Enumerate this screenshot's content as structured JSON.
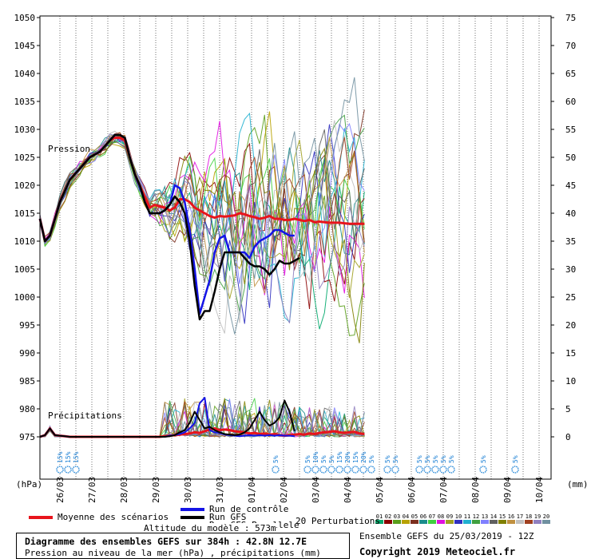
{
  "chart_data": {
    "type": "line",
    "left_axis_label": "(hPa)",
    "right_axis_label": "(mm)",
    "pressure_ticks": [
      1050,
      1045,
      1040,
      1035,
      1030,
      1025,
      1020,
      1015,
      1010,
      1005,
      1000,
      995,
      990,
      985,
      980,
      975
    ],
    "precip_ticks": [
      75,
      70,
      65,
      60,
      55,
      50,
      45,
      40,
      35,
      30,
      25,
      20,
      15,
      10,
      5,
      0
    ],
    "x_labels": [
      "26/03",
      "27/03",
      "28/03",
      "29/03",
      "30/03",
      "31/03",
      "01/04",
      "02/04",
      "03/04",
      "04/04",
      "05/04",
      "06/04",
      "07/04",
      "08/04",
      "09/04",
      "10/04"
    ],
    "section_labels": {
      "pressure": "Pression",
      "precip": "Précipitations"
    },
    "snow_labels": [
      {
        "day": 26.0,
        "text": "15%"
      },
      {
        "day": 26.25,
        "text": "15%"
      },
      {
        "day": 26.5,
        "text": "15%"
      },
      {
        "day": 1.75,
        "text": "5%"
      },
      {
        "day": 2.75,
        "text": "5%"
      },
      {
        "day": 3.0,
        "text": "10%"
      },
      {
        "day": 3.25,
        "text": "5%"
      },
      {
        "day": 3.5,
        "text": "5%"
      },
      {
        "day": 3.75,
        "text": "15%"
      },
      {
        "day": 4.0,
        "text": "20%"
      },
      {
        "day": 4.25,
        "text": "15%"
      },
      {
        "day": 4.5,
        "text": "20%"
      },
      {
        "day": 4.75,
        "text": "5%"
      },
      {
        "day": 5.25,
        "text": "5%"
      },
      {
        "day": 5.5,
        "text": "5%"
      },
      {
        "day": 6.25,
        "text": "5%"
      },
      {
        "day": 6.5,
        "text": "5%"
      },
      {
        "day": 6.75,
        "text": "5%"
      },
      {
        "day": 7.0,
        "text": "5%"
      },
      {
        "day": 7.25,
        "text": "5%"
      },
      {
        "day": 8.25,
        "text": "5%"
      },
      {
        "day": 9.25,
        "text": "5%"
      }
    ],
    "series": [
      {
        "name": "Moyenne des scénarios",
        "color": "#e8141c",
        "pressure": [
          1014,
          1010,
          1011,
          1014,
          1017,
          1019,
          1021,
          1022,
          1023,
          1024,
          1025,
          1025.5,
          1026,
          1027,
          1028,
          1028.5,
          1028.5,
          1028,
          1025,
          1022,
          1020,
          1018,
          1016,
          1016.5,
          1016.2,
          1016,
          1015.5,
          1016,
          1017.5,
          1017.5,
          1017,
          1016,
          1015.5,
          1015,
          1014.5,
          1014.2,
          1014.5,
          1014.4,
          1014.5,
          1014.6,
          1015,
          1014.8,
          1014.5,
          1014.3,
          1014,
          1014.2,
          1014.5,
          1014,
          1014,
          1013.8,
          1013.8,
          1014,
          1013.8,
          1013.6,
          1013.8,
          1013.4,
          1013.5,
          1013.4,
          1013.3,
          1013.3,
          1013.3,
          1013.2,
          1013.1,
          1013.1,
          1013.1,
          1013.1
        ],
        "precip": [
          0,
          0.3,
          1.5,
          0.3,
          0.2,
          0.1,
          0,
          0,
          0,
          0,
          0,
          0,
          0,
          0,
          0,
          0,
          0,
          0,
          0,
          0,
          0,
          0,
          0,
          0,
          0,
          0.1,
          0.2,
          0.3,
          0.4,
          0.5,
          0.6,
          0.8,
          0.7,
          1.0,
          1.3,
          1.5,
          1.2,
          1.3,
          1.2,
          1.0,
          0.9,
          0.8,
          0.6,
          0.7,
          0.5,
          0.6,
          0.4,
          0.5,
          0.3,
          0.2,
          0.3,
          0.4,
          0.5,
          0.4,
          0.6,
          0.5,
          0.7,
          0.8,
          0.9,
          1.0,
          0.8,
          0.7,
          0.8,
          0.9,
          0.6,
          0.5
        ]
      },
      {
        "name": "Run de contrôle",
        "color": "#1414e6",
        "pressure": [
          1014,
          1010,
          1011,
          1014,
          1017,
          1019,
          1021,
          1022,
          1023,
          1024,
          1025,
          1025.5,
          1026,
          1027,
          1028,
          1029,
          1029,
          1028.5,
          1025,
          1022,
          1020,
          1017,
          1015,
          1015,
          1015,
          1015.5,
          1016.5,
          1020,
          1019.5,
          1017,
          1012,
          1005,
          997,
          1000,
          1003,
          1008,
          1010.5,
          1011,
          1008,
          1008,
          1008,
          1008,
          1007,
          1009,
          1010,
          1010.5,
          1011,
          1012,
          1012,
          1011.5,
          1011,
          1011
        ],
        "precip": [
          0,
          0.3,
          1.5,
          0.3,
          0.2,
          0.1,
          0,
          0,
          0,
          0,
          0,
          0,
          0,
          0,
          0,
          0,
          0,
          0,
          0,
          0,
          0,
          0,
          0,
          0,
          0,
          0,
          0.2,
          0.3,
          0.5,
          0.8,
          1.5,
          2.5,
          6,
          7,
          1.2,
          0.8,
          0.7,
          0.4,
          0.3,
          0.2,
          0.1,
          0.2,
          0.3,
          0.2,
          0.3,
          0.2,
          0.3,
          0.2,
          0.3,
          0.2,
          0.2,
          0.1
        ]
      },
      {
        "name": "Run GFS",
        "color": "#000000",
        "pressure": [
          1014,
          1010,
          1011,
          1014,
          1017,
          1019,
          1021,
          1022,
          1023,
          1024,
          1025,
          1025.5,
          1026,
          1027,
          1028,
          1029,
          1029,
          1028.5,
          1025,
          1022,
          1020,
          1017,
          1015,
          1015,
          1015,
          1015.5,
          1016.5,
          1018,
          1017,
          1015,
          1010,
          1002,
          996,
          997.5,
          997.5,
          1001,
          1005,
          1008,
          1008,
          1008,
          1008,
          1007,
          1006,
          1005.5,
          1005.5,
          1005,
          1004,
          1005,
          1006.5,
          1006,
          1006,
          1006.5,
          1007
        ],
        "precip": [
          0,
          0.3,
          1.5,
          0.3,
          0.2,
          0.1,
          0,
          0,
          0,
          0,
          0,
          0,
          0,
          0,
          0,
          0,
          0,
          0,
          0,
          0,
          0,
          0,
          0,
          0,
          0,
          0,
          0.1,
          0.3,
          0.8,
          1.2,
          2.5,
          4.5,
          3,
          1.5,
          1.8,
          1.2,
          0.8,
          0.5,
          0.4,
          0.3,
          0.4,
          0.8,
          1.5,
          3,
          4.5,
          3,
          2,
          2.5,
          3.5,
          6.5,
          4.5,
          1
        ]
      },
      {
        "name": "Run GFS Parallele",
        "color": "#6b6b00",
        "pressure": [],
        "precip": []
      },
      {
        "name": "20 Perturbations",
        "color": "#888888",
        "pressure": [],
        "precip": []
      }
    ],
    "perturbation_keys": [
      {
        "label": "01",
        "color": "#00a86b"
      },
      {
        "label": "02",
        "color": "#8b0000"
      },
      {
        "label": "03",
        "color": "#5a9e1a"
      },
      {
        "label": "04",
        "color": "#b8a200"
      },
      {
        "label": "05",
        "color": "#7b2f1e"
      },
      {
        "label": "06",
        "color": "#1a8c8c"
      },
      {
        "label": "07",
        "color": "#40d040"
      },
      {
        "label": "08",
        "color": "#e010e0"
      },
      {
        "label": "09",
        "color": "#a0a020"
      },
      {
        "label": "10",
        "color": "#3030c0"
      },
      {
        "label": "11",
        "color": "#20b0d0"
      },
      {
        "label": "12",
        "color": "#40a040"
      },
      {
        "label": "13",
        "color": "#8080ff"
      },
      {
        "label": "14",
        "color": "#606060"
      },
      {
        "label": "15",
        "color": "#808000"
      },
      {
        "label": "16",
        "color": "#c09040"
      },
      {
        "label": "17",
        "color": "#c0c0c0"
      },
      {
        "label": "18",
        "color": "#a04020"
      },
      {
        "label": "19",
        "color": "#9080c0"
      },
      {
        "label": "20",
        "color": "#7090a0"
      }
    ]
  },
  "legend": {
    "mean": "Moyenne des scénarios",
    "control": "Run de contrôle",
    "gfs": "Run GFS",
    "gfs_parallel": "Run GFS Parallele",
    "altitude": "Altitude du modèle : 573m",
    "perturbations": "20 Perturbations"
  },
  "footer": {
    "title": "Diagramme des ensembles GEFS sur 384h : 42.8N 12.7E",
    "subtitle": "Pression au niveau de la mer (hPa) , précipitations (mm)",
    "ensemble": "Ensemble GEFS du 25/03/2019 - 12Z",
    "copyright": "Copyright 2019 Meteociel.fr"
  }
}
